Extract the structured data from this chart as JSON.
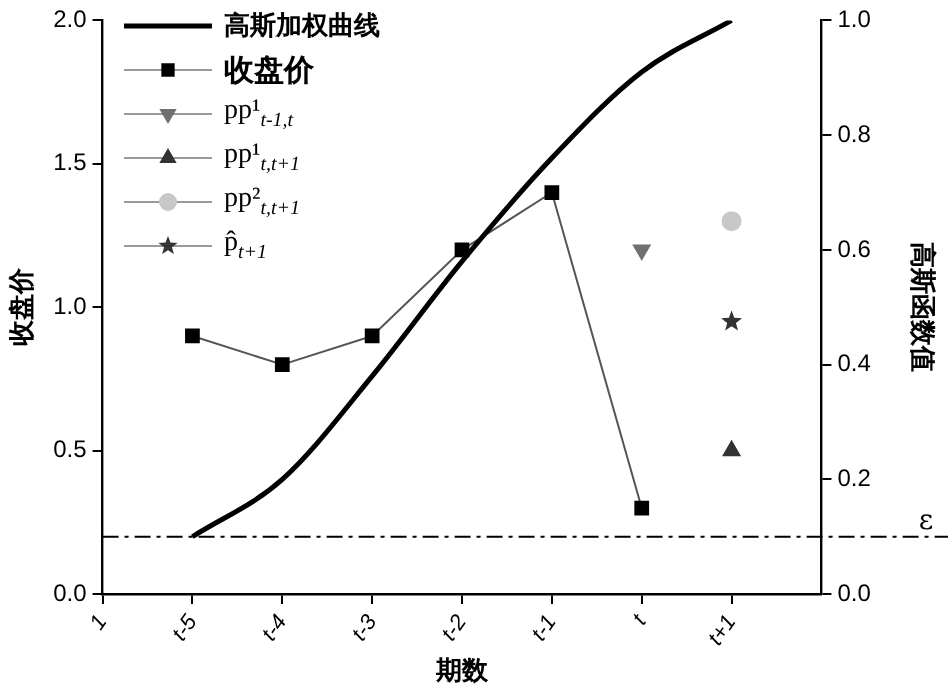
{
  "chart_data": {
    "type": "line",
    "xlabel": "期数",
    "ylabel": "收盘价",
    "y2label": "高斯函数值",
    "categories": [
      "1",
      "t-5",
      "t-4",
      "t-3",
      "t-2",
      "t-1",
      "t",
      "t+1"
    ],
    "ylim": [
      0,
      2
    ],
    "yticks": [
      {
        "value": 0,
        "label": "0.0"
      },
      {
        "value": 0.5,
        "label": "0.5"
      },
      {
        "value": 1,
        "label": "1.0"
      },
      {
        "value": 1.5,
        "label": "1.5"
      },
      {
        "value": 2,
        "label": "2.0"
      }
    ],
    "y2lim": [
      0,
      1
    ],
    "y2ticks": [
      {
        "value": 0,
        "label": "0.0"
      },
      {
        "value": 0.2,
        "label": "0.2"
      },
      {
        "value": 0.4,
        "label": "0.4"
      },
      {
        "value": 0.6,
        "label": "0.6"
      },
      {
        "value": 0.8,
        "label": "0.8"
      },
      {
        "value": 1,
        "label": "1.0"
      }
    ],
    "legend": "top left",
    "grid": false,
    "series": [
      {
        "name": "高斯加权曲线",
        "type": "line",
        "axis": "y2",
        "color": "#000000",
        "marker": "none",
        "values": [
          null,
          0.1,
          0.2,
          0.38,
          0.58,
          0.76,
          0.91,
          1.0
        ]
      },
      {
        "name": "收盘价",
        "type": "line",
        "color": "#000000",
        "marker": "square",
        "values": [
          null,
          0.9,
          0.8,
          0.9,
          1.2,
          1.4,
          0.3,
          null
        ]
      },
      {
        "name": "pp¹$_{t-1,t}$",
        "type": "scatter",
        "color": "#707070",
        "marker": "triangle-down",
        "values": [
          null,
          null,
          null,
          null,
          null,
          null,
          1.2,
          null
        ]
      },
      {
        "name": "pp¹$_{t,t+1}$",
        "type": "scatter",
        "color": "#333333",
        "marker": "triangle",
        "values": [
          null,
          null,
          null,
          null,
          null,
          null,
          null,
          0.5
        ]
      },
      {
        "name": "pp²$_{t,t+1}$",
        "type": "scatter",
        "color": "#c8c8c8",
        "marker": "circle",
        "values": [
          null,
          null,
          null,
          null,
          null,
          null,
          null,
          1.3
        ]
      },
      {
        "name": "p̂$_{t+1}$",
        "type": "scatter",
        "color": "#333333",
        "marker": "star",
        "values": [
          null,
          null,
          null,
          null,
          null,
          null,
          null,
          0.95
        ]
      }
    ],
    "ref_lines": [
      {
        "axis": "y",
        "value": 0.2,
        "label": "ε",
        "color": "#000000",
        "line_style": "dashed"
      }
    ]
  }
}
